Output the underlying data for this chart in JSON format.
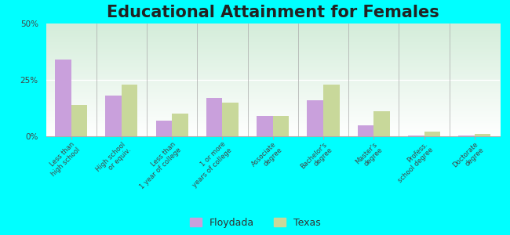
{
  "title": "Educational Attainment for Females",
  "categories": [
    "Less than\nhigh school",
    "High school\nor equiv.",
    "Less than\n1 year of college",
    "1 or more\nyears of college",
    "Associate\ndegree",
    "Bachelor's\ndegree",
    "Master's\ndegree",
    "Profess.\nschool degree",
    "Doctorate\ndegree"
  ],
  "floydada": [
    34,
    18,
    7,
    17,
    9,
    16,
    5,
    0.5,
    0.3
  ],
  "texas": [
    14,
    23,
    10,
    15,
    9,
    23,
    11,
    2,
    1
  ],
  "floydada_color": "#c9a0dc",
  "texas_color": "#c8d89a",
  "background_color": "#00ffff",
  "ylim": [
    0,
    50
  ],
  "yticks": [
    0,
    25,
    50
  ],
  "ytick_labels": [
    "0%",
    "25%",
    "50%"
  ],
  "title_fontsize": 15,
  "legend_labels": [
    "Floydada",
    "Texas"
  ],
  "bar_width": 0.32
}
